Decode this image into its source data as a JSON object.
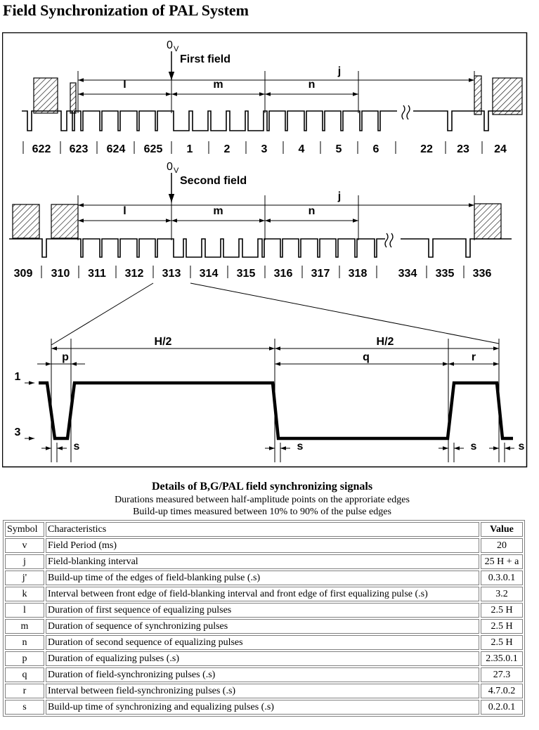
{
  "title": "Field Synchronization of PAL System",
  "diagram": {
    "first_field": {
      "ref_label": "0",
      "ref_sub": "V",
      "name": "First field",
      "interval_labels": [
        "j",
        "l",
        "m",
        "n"
      ],
      "line_numbers": [
        "622",
        "623",
        "624",
        "625",
        "1",
        "2",
        "3",
        "4",
        "5",
        "6",
        "22",
        "23",
        "24"
      ]
    },
    "second_field": {
      "ref_label": "0",
      "ref_sub": "V",
      "name": "Second field",
      "interval_labels": [
        "j",
        "l",
        "m",
        "n"
      ],
      "line_numbers": [
        "309",
        "310",
        "311",
        "312",
        "313",
        "314",
        "315",
        "316",
        "317",
        "318",
        "334",
        "335",
        "336"
      ]
    },
    "detail": {
      "half_line_label": "H/2",
      "labels": {
        "p": "p",
        "q": "q",
        "r": "r",
        "s": "s"
      },
      "level_labels": [
        "1",
        "3"
      ]
    }
  },
  "caption": {
    "title": "Details of B,G/PAL field synchronizing signals",
    "line1": "Durations measured between half-amplitude points on the approriate edges",
    "line2": "Build-up times measured between 10% to 90% of the pulse edges"
  },
  "table": {
    "headers": [
      "Symbol",
      "Characteristics",
      "Value"
    ],
    "rows": [
      {
        "symbol": "v",
        "characteristic": "Field Period (ms)",
        "value": "20"
      },
      {
        "symbol": "j",
        "characteristic": "Field-blanking interval",
        "value": "25 H + a"
      },
      {
        "symbol": "j'",
        "characteristic": "Build-up time of the edges of field-blanking pulse (.s)",
        "value": "0.3.0.1"
      },
      {
        "symbol": "k",
        "characteristic": "Interval between front edge of field-blanking interval and front edge of first equalizing pulse (.s)",
        "value": "3.2"
      },
      {
        "symbol": "l",
        "characteristic": "Duration of first sequence of equalizing pulses",
        "value": "2.5 H"
      },
      {
        "symbol": "m",
        "characteristic": "Duration of sequence of synchronizing pulses",
        "value": "2.5 H"
      },
      {
        "symbol": "n",
        "characteristic": "Duration of second sequence of equalizing pulses",
        "value": "2.5 H"
      },
      {
        "symbol": "p",
        "characteristic": "Duration of equalizing pulses (.s)",
        "value": "2.35.0.1"
      },
      {
        "symbol": "q",
        "characteristic": "Duration of field-synchronizing pulses (.s)",
        "value": "27.3"
      },
      {
        "symbol": "r",
        "characteristic": "Interval between field-synchronizing pulses (.s)",
        "value": "4.7.0.2"
      },
      {
        "symbol": "s",
        "characteristic": "Build-up time of synchronizing and equalizing pulses (.s)",
        "value": "0.2.0.1"
      }
    ]
  }
}
